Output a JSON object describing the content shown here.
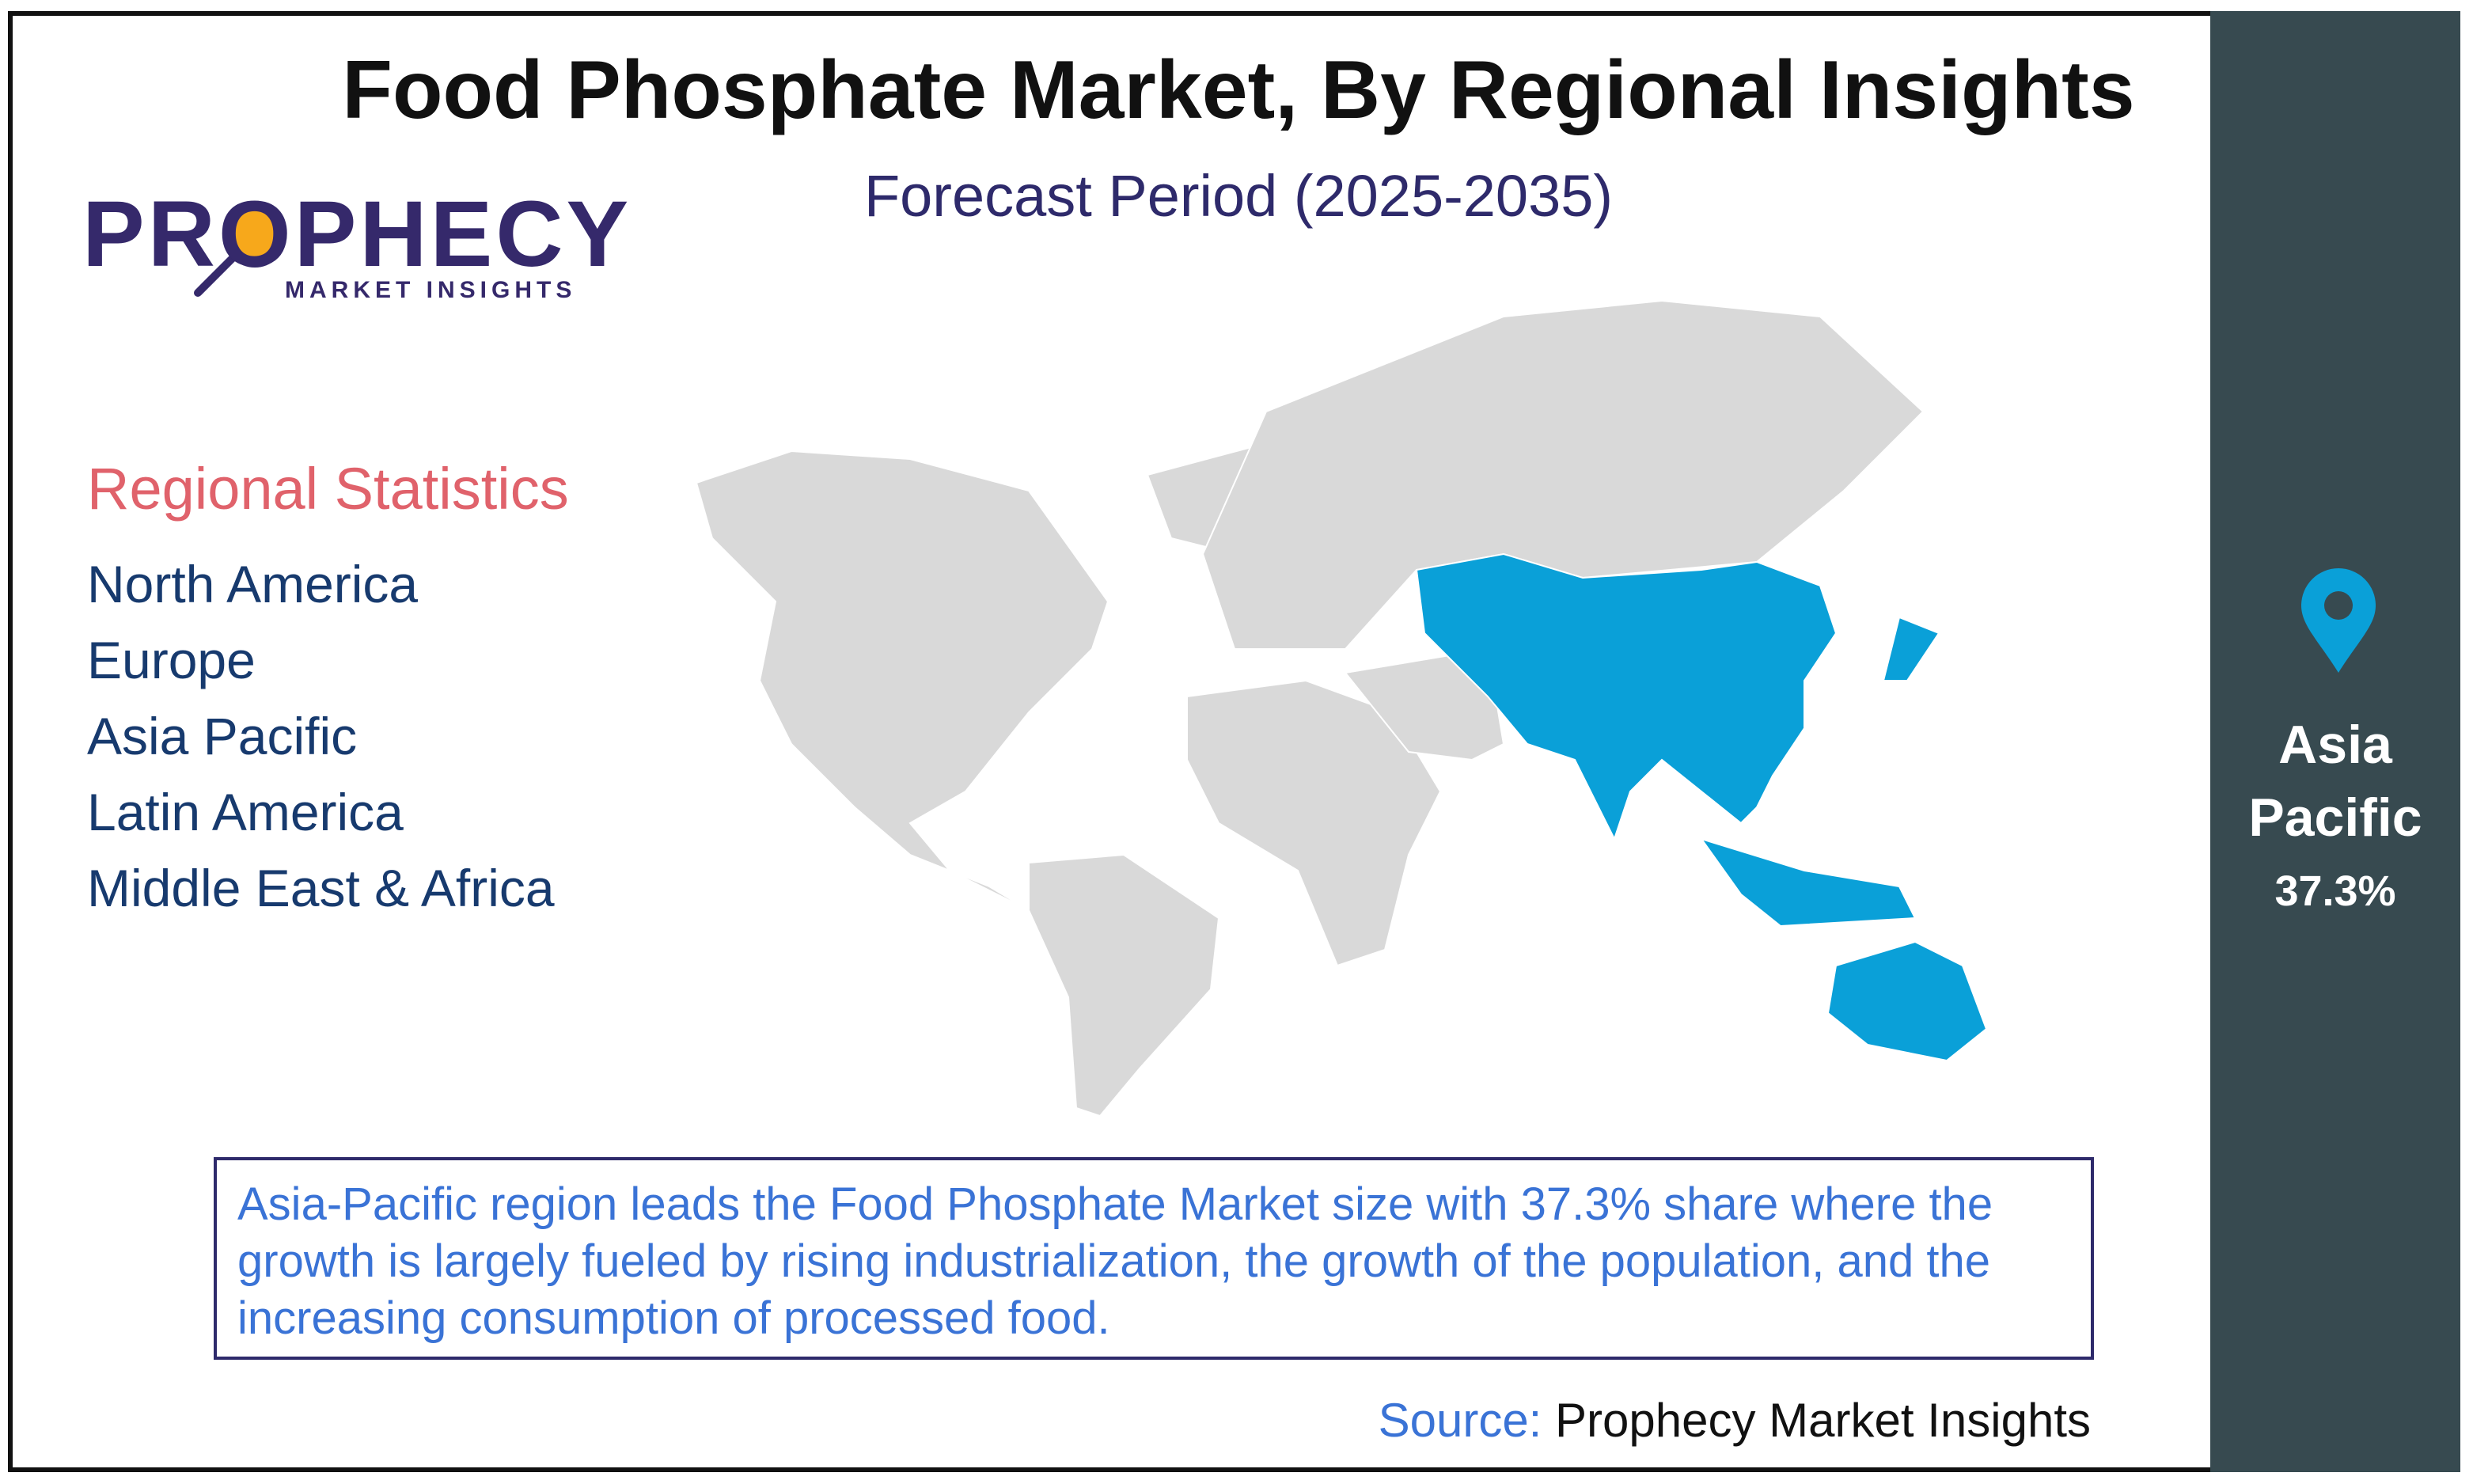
{
  "header": {
    "title": "Food Phosphate Market, By Regional Insights",
    "subtitle": "Forecast Period (2025-2035)"
  },
  "logo": {
    "name": "PROPHECY",
    "tagline": "MARKET INSIGHTS"
  },
  "regional_statistics": {
    "heading": "Regional Statistics",
    "regions": [
      "North America",
      "Europe",
      "Asia Pacific",
      "Latin America",
      "Middle East & Africa"
    ]
  },
  "highlight": {
    "region": "Asia Pacific",
    "share": "37.3%"
  },
  "description": "Asia-Pacific region leads the Food Phosphate Market size with 37.3% share where the growth is largely fueled by rising industrialization, the growth of the population, and the increasing consumption of processed food.",
  "source": {
    "label": "Source:",
    "name": "Prophecy Market Insights"
  }
}
